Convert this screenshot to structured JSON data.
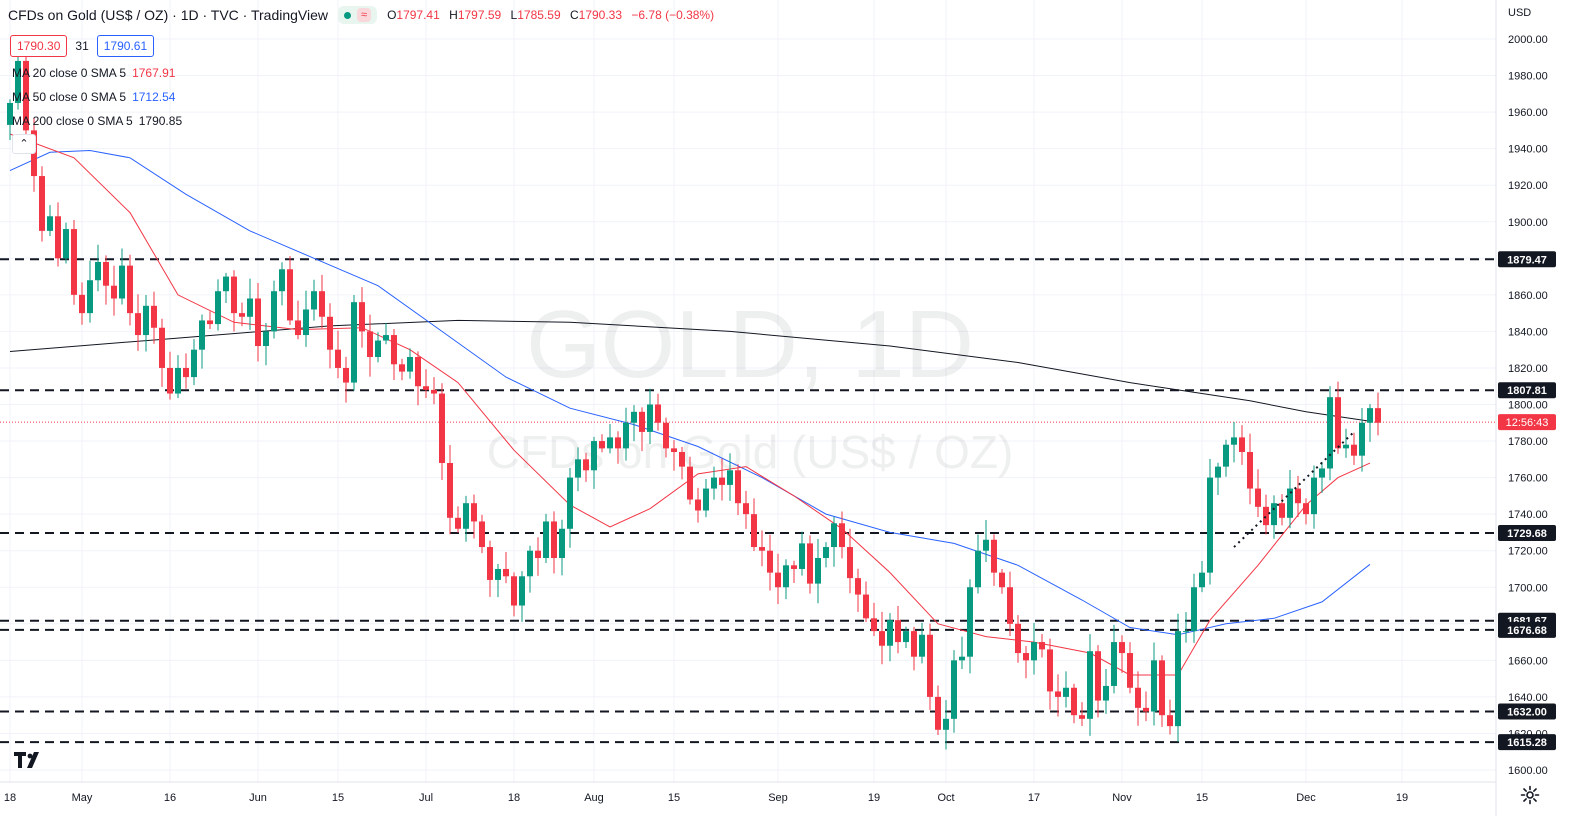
{
  "header": {
    "title": "CFDs on Gold (US$ / OZ) · 1D · TVC · TradingView",
    "ohlc": [
      {
        "k": "O",
        "v": "1797.41"
      },
      {
        "k": "H",
        "v": "1797.59"
      },
      {
        "k": "L",
        "v": "1785.59"
      },
      {
        "k": "C",
        "v": "1790.33"
      }
    ],
    "change": "−6.78 (−0.38%)"
  },
  "price_boxes": {
    "bid": "1790.30",
    "spread": "31",
    "ask": "1790.61"
  },
  "indicators": [
    {
      "label": "MA 20 close 0 SMA 5",
      "value": "1767.91",
      "color": "#f23645"
    },
    {
      "label": "MA 50 close 0 SMA 5",
      "value": "1712.54",
      "color": "#2962ff"
    },
    {
      "label": "MA 200 close 0 SMA 5",
      "value": "1790.85",
      "color": "#131722"
    }
  ],
  "currency": "USD",
  "watermark": {
    "symbol": "GOLD, 1D",
    "name": "CFDs on Gold (US$ / OZ)"
  },
  "colors": {
    "up": "#089981",
    "down": "#f23645",
    "ma20": "#f23645",
    "ma50": "#2962ff",
    "ma200": "#131722",
    "grid": "#f0f3fa"
  },
  "icons": {
    "logo": "tradingview-logo-icon",
    "settings": "gear-icon",
    "collapse": "chevron-up-icon"
  },
  "chart_data": {
    "type": "candlestick",
    "title": "CFDs on Gold (US$ / OZ)",
    "interval": "1D",
    "ylim": [
      1590,
      2010
    ],
    "y_ticks": [
      1600,
      1620,
      1640,
      1660,
      1680,
      1700,
      1720,
      1740,
      1760,
      1780,
      1800,
      1820,
      1840,
      1860,
      1880,
      1900,
      1920,
      1940,
      1960,
      1980,
      2000
    ],
    "x_ticks": [
      {
        "label": "18",
        "i": 0
      },
      {
        "label": "May",
        "i": 9
      },
      {
        "label": "16",
        "i": 20
      },
      {
        "label": "Jun",
        "i": 31
      },
      {
        "label": "15",
        "i": 41
      },
      {
        "label": "Jul",
        "i": 52
      },
      {
        "label": "18",
        "i": 63
      },
      {
        "label": "Aug",
        "i": 73
      },
      {
        "label": "15",
        "i": 83
      },
      {
        "label": "Sep",
        "i": 96
      },
      {
        "label": "19",
        "i": 108
      },
      {
        "label": "Oct",
        "i": 117
      },
      {
        "label": "17",
        "i": 128
      },
      {
        "label": "Nov",
        "i": 139
      },
      {
        "label": "15",
        "i": 149
      },
      {
        "label": "Dec",
        "i": 162
      },
      {
        "label": "19",
        "i": 174
      }
    ],
    "horizontal_levels": [
      1879.47,
      1807.81,
      1729.68,
      1681.67,
      1676.68,
      1632.0,
      1615.28
    ],
    "current_price": {
      "value": 1790.33,
      "countdown": "12:56:43"
    },
    "trendline": [
      {
        "i": 153,
        "y": 1722
      },
      {
        "i": 168,
        "y": 1785
      }
    ],
    "closes": [
      1965,
      1988,
      1950,
      1925,
      1895,
      1903,
      1880,
      1896,
      1860,
      1850,
      1868,
      1878,
      1865,
      1858,
      1876,
      1850,
      1838,
      1854,
      1842,
      1820,
      1806,
      1820,
      1815,
      1830,
      1846,
      1844,
      1862,
      1870,
      1850,
      1848,
      1858,
      1832,
      1840,
      1862,
      1874,
      1846,
      1838,
      1852,
      1862,
      1848,
      1830,
      1820,
      1812,
      1856,
      1840,
      1826,
      1835,
      1838,
      1822,
      1818,
      1826,
      1810,
      1808,
      1806,
      1768,
      1738,
      1732,
      1746,
      1736,
      1722,
      1704,
      1710,
      1706,
      1690,
      1706,
      1720,
      1716,
      1736,
      1716,
      1732,
      1760,
      1770,
      1764,
      1780,
      1776,
      1782,
      1776,
      1790,
      1796,
      1785,
      1800,
      1790,
      1776,
      1774,
      1766,
      1748,
      1742,
      1754,
      1760,
      1756,
      1764,
      1746,
      1740,
      1722,
      1720,
      1708,
      1700,
      1712,
      1710,
      1724,
      1702,
      1716,
      1722,
      1735,
      1722,
      1705,
      1696,
      1683,
      1676,
      1668,
      1682,
      1670,
      1676,
      1662,
      1674,
      1640,
      1622,
      1628,
      1660,
      1662,
      1700,
      1720,
      1726,
      1708,
      1700,
      1680,
      1664,
      1660,
      1670,
      1666,
      1643,
      1640,
      1645,
      1630,
      1628,
      1665,
      1638,
      1646,
      1670,
      1664,
      1645,
      1634,
      1632,
      1660,
      1630,
      1624,
      1676,
      1676,
      1700,
      1708,
      1760,
      1766,
      1778,
      1782,
      1774,
      1754,
      1744,
      1734,
      1746,
      1738,
      1754,
      1746,
      1740,
      1760,
      1765,
      1804,
      1776,
      1778,
      1772,
      1790,
      1798,
      1790
    ],
    "ma_20": [
      {
        "i": 0,
        "y": 1948
      },
      {
        "i": 8,
        "y": 1935
      },
      {
        "i": 15,
        "y": 1905
      },
      {
        "i": 21,
        "y": 1860
      },
      {
        "i": 28,
        "y": 1845
      },
      {
        "i": 36,
        "y": 1841
      },
      {
        "i": 44,
        "y": 1842
      },
      {
        "i": 50,
        "y": 1830
      },
      {
        "i": 56,
        "y": 1812
      },
      {
        "i": 63,
        "y": 1775
      },
      {
        "i": 70,
        "y": 1745
      },
      {
        "i": 75,
        "y": 1733
      },
      {
        "i": 80,
        "y": 1743
      },
      {
        "i": 86,
        "y": 1762
      },
      {
        "i": 92,
        "y": 1766
      },
      {
        "i": 98,
        "y": 1750
      },
      {
        "i": 104,
        "y": 1732
      },
      {
        "i": 110,
        "y": 1708
      },
      {
        "i": 116,
        "y": 1680
      },
      {
        "i": 122,
        "y": 1673
      },
      {
        "i": 128,
        "y": 1670
      },
      {
        "i": 135,
        "y": 1664
      },
      {
        "i": 140,
        "y": 1652
      },
      {
        "i": 146,
        "y": 1652
      },
      {
        "i": 150,
        "y": 1682
      },
      {
        "i": 156,
        "y": 1712
      },
      {
        "i": 162,
        "y": 1745
      },
      {
        "i": 166,
        "y": 1760
      },
      {
        "i": 170,
        "y": 1767.91
      }
    ],
    "ma_50": [
      {
        "i": 0,
        "y": 1928
      },
      {
        "i": 5,
        "y": 1938
      },
      {
        "i": 10,
        "y": 1939
      },
      {
        "i": 15,
        "y": 1935
      },
      {
        "i": 22,
        "y": 1915
      },
      {
        "i": 30,
        "y": 1895
      },
      {
        "i": 38,
        "y": 1880
      },
      {
        "i": 46,
        "y": 1865
      },
      {
        "i": 54,
        "y": 1840
      },
      {
        "i": 62,
        "y": 1815
      },
      {
        "i": 70,
        "y": 1798
      },
      {
        "i": 78,
        "y": 1789
      },
      {
        "i": 86,
        "y": 1777
      },
      {
        "i": 94,
        "y": 1760
      },
      {
        "i": 102,
        "y": 1740
      },
      {
        "i": 110,
        "y": 1730
      },
      {
        "i": 118,
        "y": 1724
      },
      {
        "i": 126,
        "y": 1712
      },
      {
        "i": 134,
        "y": 1693
      },
      {
        "i": 140,
        "y": 1678
      },
      {
        "i": 146,
        "y": 1674
      },
      {
        "i": 152,
        "y": 1680
      },
      {
        "i": 158,
        "y": 1683
      },
      {
        "i": 164,
        "y": 1692
      },
      {
        "i": 170,
        "y": 1712.54
      }
    ],
    "ma_200": [
      {
        "i": 0,
        "y": 1829
      },
      {
        "i": 20,
        "y": 1836
      },
      {
        "i": 40,
        "y": 1843
      },
      {
        "i": 56,
        "y": 1846
      },
      {
        "i": 70,
        "y": 1845
      },
      {
        "i": 90,
        "y": 1840
      },
      {
        "i": 110,
        "y": 1832
      },
      {
        "i": 126,
        "y": 1823
      },
      {
        "i": 140,
        "y": 1812
      },
      {
        "i": 155,
        "y": 1802
      },
      {
        "i": 162,
        "y": 1796
      },
      {
        "i": 170,
        "y": 1790.85
      }
    ]
  }
}
